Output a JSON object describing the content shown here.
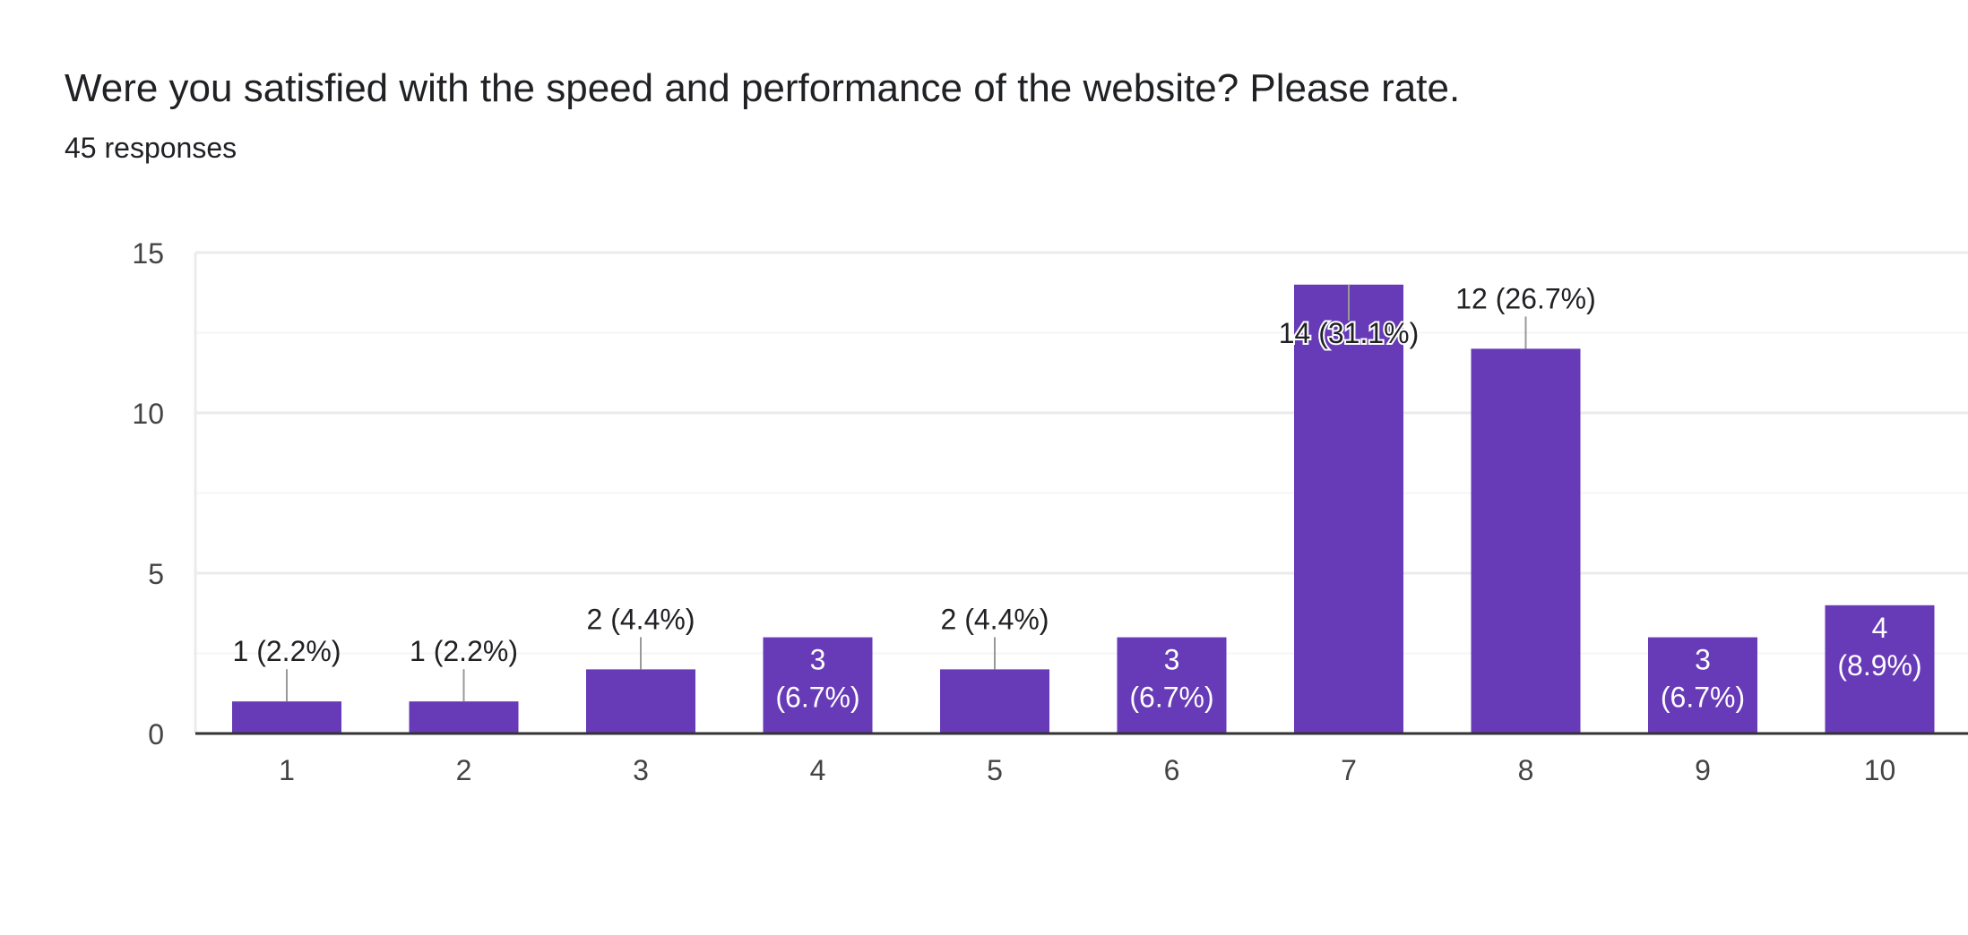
{
  "header": {
    "title": "Were you satisfied with the speed and performance of the website? Please rate.",
    "responses": "45 responses"
  },
  "colors": {
    "bar": "#673ab7",
    "grid": "#ebebeb",
    "axis": "#333333",
    "leader": "#999999",
    "label_dark": "#202124",
    "label_light": "#ffffff",
    "tick": "#444444"
  },
  "chart_data": {
    "type": "bar",
    "categories": [
      "1",
      "2",
      "3",
      "4",
      "5",
      "6",
      "7",
      "8",
      "9",
      "10"
    ],
    "values": [
      1,
      1,
      2,
      3,
      2,
      3,
      14,
      12,
      3,
      4
    ],
    "data_labels": [
      "1 (2.2%)",
      "1 (2.2%)",
      "2 (4.4%)",
      "3 (6.7%)",
      "2 (4.4%)",
      "3 (6.7%)",
      "14 (31.1%)",
      "12 (26.7%)",
      "3 (6.7%)",
      "4 (8.9%)"
    ],
    "ylim": [
      0,
      15
    ],
    "yticks": [
      0,
      5,
      10,
      15
    ],
    "grid": true,
    "xlabel": "",
    "ylabel": ""
  }
}
